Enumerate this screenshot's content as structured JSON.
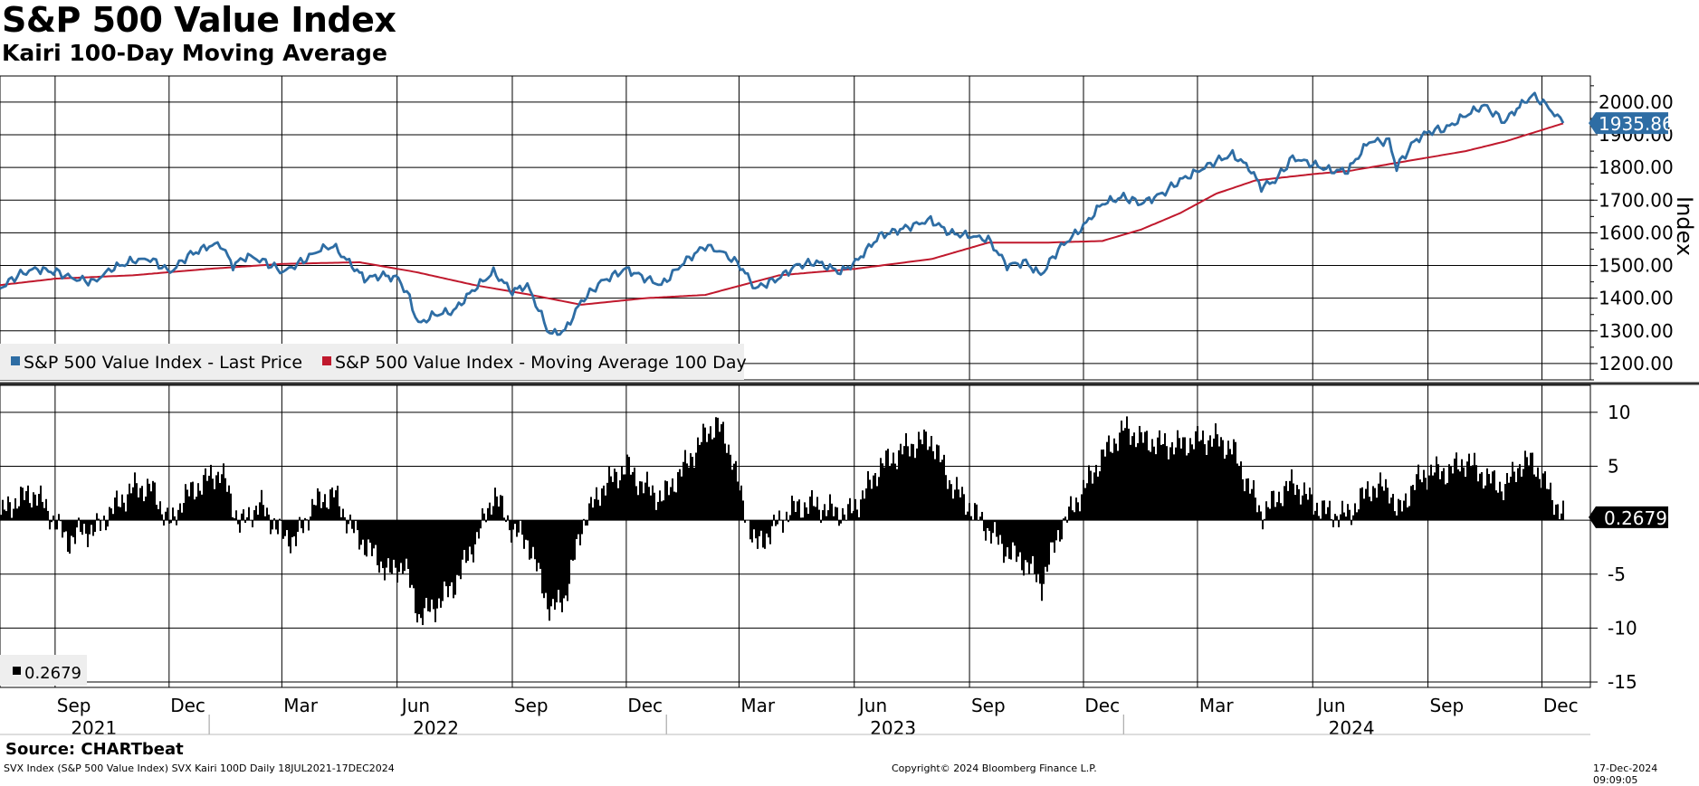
{
  "header": {
    "title": "S&P 500 Value Index",
    "subtitle": "Kairi 100-Day Moving Average"
  },
  "footer": {
    "source": "Source: CHARTbeat",
    "ticker_info": "SVX Index (S&P 500 Value Index) SVX Kairi 100D  Daily 18JUL2021-17DEC2024",
    "copyright": "Copyright© 2024 Bloomberg Finance L.P.",
    "timestamp": "17-Dec-2024 09:09:05"
  },
  "colors": {
    "price": "#2e6da4",
    "ma": "#c0192d",
    "kairi": "#000000",
    "last_price_tag": "#2e6da4",
    "last_kairi_tag": "#000000"
  },
  "chart_data": [
    {
      "type": "line",
      "panel": "top",
      "ylabel": "Index",
      "ylim": [
        1150,
        2080
      ],
      "yticks": [
        1200,
        1300,
        1400,
        1500,
        1600,
        1700,
        1800,
        1900,
        2000
      ],
      "ytick_labels": [
        "1200.00",
        "1300.00",
        "1400.00",
        "1500.00",
        "1600.00",
        "1700.00",
        "1800.00",
        "1900.00",
        "2000.00"
      ],
      "last_value": 1935.86,
      "last_value_label": "1935.86",
      "legend": [
        {
          "name": "S&P 500 Value Index - Last Price",
          "color": "#2e6da4"
        },
        {
          "name": "S&P 500 Value Index - Moving Average 100 Day",
          "color": "#c0192d"
        }
      ],
      "series": [
        {
          "name": "S&P 500 Value Index - Last Price",
          "points": [
            [
              "2021-07-18",
              1430
            ],
            [
              "2021-08-01",
              1470
            ],
            [
              "2021-08-15",
              1490
            ],
            [
              "2021-09-01",
              1480
            ],
            [
              "2021-09-15",
              1460
            ],
            [
              "2021-10-01",
              1450
            ],
            [
              "2021-10-15",
              1490
            ],
            [
              "2021-11-01",
              1515
            ],
            [
              "2021-11-15",
              1520
            ],
            [
              "2021-12-01",
              1480
            ],
            [
              "2021-12-15",
              1530
            ],
            [
              "2022-01-01",
              1560
            ],
            [
              "2022-01-10",
              1565
            ],
            [
              "2022-01-20",
              1500
            ],
            [
              "2022-02-01",
              1530
            ],
            [
              "2022-02-15",
              1510
            ],
            [
              "2022-03-01",
              1480
            ],
            [
              "2022-03-15",
              1510
            ],
            [
              "2022-03-31",
              1550
            ],
            [
              "2022-04-10",
              1560
            ],
            [
              "2022-04-25",
              1500
            ],
            [
              "2022-05-05",
              1460
            ],
            [
              "2022-05-20",
              1470
            ],
            [
              "2022-06-01",
              1460
            ],
            [
              "2022-06-10",
              1400
            ],
            [
              "2022-06-17",
              1320
            ],
            [
              "2022-06-30",
              1350
            ],
            [
              "2022-07-15",
              1360
            ],
            [
              "2022-08-01",
              1430
            ],
            [
              "2022-08-16",
              1480
            ],
            [
              "2022-08-31",
              1420
            ],
            [
              "2022-09-12",
              1440
            ],
            [
              "2022-09-30",
              1290
            ],
            [
              "2022-10-12",
              1300
            ],
            [
              "2022-10-25",
              1390
            ],
            [
              "2022-11-10",
              1450
            ],
            [
              "2022-11-30",
              1490
            ],
            [
              "2022-12-10",
              1470
            ],
            [
              "2022-12-28",
              1440
            ],
            [
              "2023-01-15",
              1510
            ],
            [
              "2023-02-01",
              1560
            ],
            [
              "2023-02-15",
              1540
            ],
            [
              "2023-03-01",
              1500
            ],
            [
              "2023-03-13",
              1430
            ],
            [
              "2023-03-31",
              1460
            ],
            [
              "2023-04-15",
              1500
            ],
            [
              "2023-05-01",
              1510
            ],
            [
              "2023-05-20",
              1480
            ],
            [
              "2023-06-01",
              1510
            ],
            [
              "2023-06-20",
              1590
            ],
            [
              "2023-07-15",
              1620
            ],
            [
              "2023-07-31",
              1640
            ],
            [
              "2023-08-15",
              1600
            ],
            [
              "2023-09-01",
              1590
            ],
            [
              "2023-09-15",
              1580
            ],
            [
              "2023-09-30",
              1500
            ],
            [
              "2023-10-15",
              1510
            ],
            [
              "2023-10-27",
              1470
            ],
            [
              "2023-11-10",
              1550
            ],
            [
              "2023-11-30",
              1620
            ],
            [
              "2023-12-15",
              1690
            ],
            [
              "2024-01-01",
              1710
            ],
            [
              "2024-01-15",
              1690
            ],
            [
              "2024-02-01",
              1720
            ],
            [
              "2024-02-15",
              1760
            ],
            [
              "2024-03-01",
              1790
            ],
            [
              "2024-03-15",
              1820
            ],
            [
              "2024-03-28",
              1840
            ],
            [
              "2024-04-10",
              1800
            ],
            [
              "2024-04-20",
              1740
            ],
            [
              "2024-05-01",
              1760
            ],
            [
              "2024-05-15",
              1830
            ],
            [
              "2024-05-31",
              1810
            ],
            [
              "2024-06-15",
              1790
            ],
            [
              "2024-06-28",
              1790
            ],
            [
              "2024-07-15",
              1880
            ],
            [
              "2024-07-31",
              1880
            ],
            [
              "2024-08-06",
              1800
            ],
            [
              "2024-08-20",
              1880
            ],
            [
              "2024-09-01",
              1910
            ],
            [
              "2024-09-15",
              1920
            ],
            [
              "2024-09-30",
              1960
            ],
            [
              "2024-10-15",
              1990
            ],
            [
              "2024-10-31",
              1940
            ],
            [
              "2024-11-10",
              1980
            ],
            [
              "2024-11-22",
              2020
            ],
            [
              "2024-12-01",
              2000
            ],
            [
              "2024-12-17",
              1935.86
            ]
          ]
        },
        {
          "name": "S&P 500 Value Index - Moving Average 100 Day",
          "points": [
            [
              "2021-07-18",
              1440
            ],
            [
              "2021-09-01",
              1460
            ],
            [
              "2021-11-01",
              1470
            ],
            [
              "2022-01-01",
              1490
            ],
            [
              "2022-03-01",
              1505
            ],
            [
              "2022-05-01",
              1510
            ],
            [
              "2022-06-15",
              1480
            ],
            [
              "2022-08-01",
              1440
            ],
            [
              "2022-09-15",
              1410
            ],
            [
              "2022-10-25",
              1380
            ],
            [
              "2022-12-15",
              1400
            ],
            [
              "2023-02-01",
              1410
            ],
            [
              "2023-04-01",
              1470
            ],
            [
              "2023-06-01",
              1490
            ],
            [
              "2023-08-01",
              1520
            ],
            [
              "2023-09-15",
              1570
            ],
            [
              "2023-10-31",
              1570
            ],
            [
              "2023-12-15",
              1575
            ],
            [
              "2024-01-15",
              1610
            ],
            [
              "2024-02-15",
              1660
            ],
            [
              "2024-03-15",
              1720
            ],
            [
              "2024-04-15",
              1760
            ],
            [
              "2024-06-01",
              1780
            ],
            [
              "2024-06-30",
              1790
            ],
            [
              "2024-08-15",
              1820
            ],
            [
              "2024-09-30",
              1850
            ],
            [
              "2024-11-01",
              1880
            ],
            [
              "2024-12-17",
              1935
            ]
          ]
        }
      ]
    },
    {
      "type": "bar",
      "panel": "bottom",
      "name": "Kairi 100-Day",
      "ylim": [
        -15.5,
        12.5
      ],
      "yticks": [
        10,
        5,
        -5,
        -10,
        -15
      ],
      "ytick_labels": [
        "10",
        "5",
        "-5",
        "-10",
        "-15"
      ],
      "last_value": 0.2679,
      "last_value_label": "0.2679",
      "legend": [
        {
          "name": "0.2679",
          "color": "#000000"
        }
      ],
      "series": [
        {
          "name": "Kairi 100D",
          "points": [
            [
              "2021-07-18",
              0.5
            ],
            [
              "2021-08-01",
              2
            ],
            [
              "2021-08-15",
              2.5
            ],
            [
              "2021-09-01",
              -0.5
            ],
            [
              "2021-09-10",
              -2
            ],
            [
              "2021-09-20",
              -1
            ],
            [
              "2021-10-01",
              -1
            ],
            [
              "2021-10-15",
              1
            ],
            [
              "2021-11-01",
              3
            ],
            [
              "2021-11-15",
              3
            ],
            [
              "2021-12-01",
              -0.5
            ],
            [
              "2021-12-10",
              2
            ],
            [
              "2022-01-01",
              4
            ],
            [
              "2022-01-10",
              4.5
            ],
            [
              "2022-01-25",
              -0.5
            ],
            [
              "2022-02-10",
              1.5
            ],
            [
              "2022-02-25",
              -1
            ],
            [
              "2022-03-10",
              -2
            ],
            [
              "2022-03-25",
              1.5
            ],
            [
              "2022-04-10",
              2.5
            ],
            [
              "2022-04-25",
              -1
            ],
            [
              "2022-05-10",
              -3
            ],
            [
              "2022-05-25",
              -5
            ],
            [
              "2022-06-05",
              -4
            ],
            [
              "2022-06-17",
              -9
            ],
            [
              "2022-06-30",
              -8
            ],
            [
              "2022-07-15",
              -6
            ],
            [
              "2022-08-01",
              -2
            ],
            [
              "2022-08-16",
              2.5
            ],
            [
              "2022-08-31",
              -1
            ],
            [
              "2022-09-12",
              -2
            ],
            [
              "2022-09-30",
              -8.5
            ],
            [
              "2022-10-12",
              -7
            ],
            [
              "2022-10-25",
              -0.5
            ],
            [
              "2022-11-10",
              3
            ],
            [
              "2022-11-30",
              5
            ],
            [
              "2022-12-10",
              3.5
            ],
            [
              "2022-12-28",
              2
            ],
            [
              "2023-01-15",
              5
            ],
            [
              "2023-02-01",
              8
            ],
            [
              "2023-02-10",
              9
            ],
            [
              "2023-02-22",
              6
            ],
            [
              "2023-03-01",
              2
            ],
            [
              "2023-03-13",
              -2.5
            ],
            [
              "2023-03-25",
              -1
            ],
            [
              "2023-04-10",
              1
            ],
            [
              "2023-04-25",
              1.5
            ],
            [
              "2023-05-10",
              1
            ],
            [
              "2023-05-25",
              0.5
            ],
            [
              "2023-06-05",
              2
            ],
            [
              "2023-06-20",
              5
            ],
            [
              "2023-07-15",
              7
            ],
            [
              "2023-07-31",
              7.5
            ],
            [
              "2023-08-15",
              3.5
            ],
            [
              "2023-09-01",
              1
            ],
            [
              "2023-09-15",
              -1
            ],
            [
              "2023-09-30",
              -3
            ],
            [
              "2023-10-15",
              -4
            ],
            [
              "2023-10-27",
              -6
            ],
            [
              "2023-11-10",
              -1
            ],
            [
              "2023-11-30",
              3
            ],
            [
              "2023-12-15",
              6
            ],
            [
              "2024-01-01",
              8.5
            ],
            [
              "2024-01-15",
              7.5
            ],
            [
              "2024-02-01",
              7
            ],
            [
              "2024-02-15",
              7
            ],
            [
              "2024-03-01",
              7.5
            ],
            [
              "2024-03-15",
              7.5
            ],
            [
              "2024-03-28",
              6.5
            ],
            [
              "2024-04-10",
              3
            ],
            [
              "2024-04-20",
              0.5
            ],
            [
              "2024-05-01",
              2
            ],
            [
              "2024-05-15",
              3.5
            ],
            [
              "2024-05-31",
              1.5
            ],
            [
              "2024-06-15",
              0.5
            ],
            [
              "2024-06-28",
              0.5
            ],
            [
              "2024-07-15",
              3
            ],
            [
              "2024-07-31",
              3
            ],
            [
              "2024-08-06",
              0.5
            ],
            [
              "2024-08-20",
              3.5
            ],
            [
              "2024-09-01",
              4.5
            ],
            [
              "2024-09-15",
              4.5
            ],
            [
              "2024-09-30",
              5.5
            ],
            [
              "2024-10-15",
              4
            ],
            [
              "2024-10-31",
              3
            ],
            [
              "2024-11-10",
              5
            ],
            [
              "2024-11-22",
              5.5
            ],
            [
              "2024-12-01",
              3.5
            ],
            [
              "2024-12-17",
              0.2679
            ]
          ]
        }
      ]
    }
  ],
  "x_axis": {
    "range": [
      "2021-07-18",
      "2024-12-17"
    ],
    "gridlines": [
      "2021-08-31",
      "2021-11-30",
      "2022-02-28",
      "2022-05-31",
      "2022-08-31",
      "2022-11-30",
      "2023-02-28",
      "2023-05-31",
      "2023-08-31",
      "2023-11-30",
      "2024-02-29",
      "2024-05-31",
      "2024-08-31",
      "2024-11-30"
    ],
    "month_ticks": [
      {
        "label": "Sep",
        "date": "2021-09-15"
      },
      {
        "label": "Dec",
        "date": "2021-12-15"
      },
      {
        "label": "Mar",
        "date": "2022-03-15"
      },
      {
        "label": "Jun",
        "date": "2022-06-15"
      },
      {
        "label": "Sep",
        "date": "2022-09-15"
      },
      {
        "label": "Dec",
        "date": "2022-12-15"
      },
      {
        "label": "Mar",
        "date": "2023-03-15"
      },
      {
        "label": "Jun",
        "date": "2023-06-15"
      },
      {
        "label": "Sep",
        "date": "2023-09-15"
      },
      {
        "label": "Dec",
        "date": "2023-12-15"
      },
      {
        "label": "Mar",
        "date": "2024-03-15"
      },
      {
        "label": "Jun",
        "date": "2024-06-15"
      },
      {
        "label": "Sep",
        "date": "2024-09-15"
      },
      {
        "label": "Dec",
        "date": "2024-12-15"
      }
    ],
    "year_labels": [
      {
        "label": "2021",
        "date": "2021-10-01"
      },
      {
        "label": "2022",
        "date": "2022-07-01"
      },
      {
        "label": "2023",
        "date": "2023-07-01"
      },
      {
        "label": "2024",
        "date": "2024-07-01"
      }
    ],
    "year_dividers": [
      "2022-01-01",
      "2023-01-01",
      "2024-01-01"
    ]
  }
}
